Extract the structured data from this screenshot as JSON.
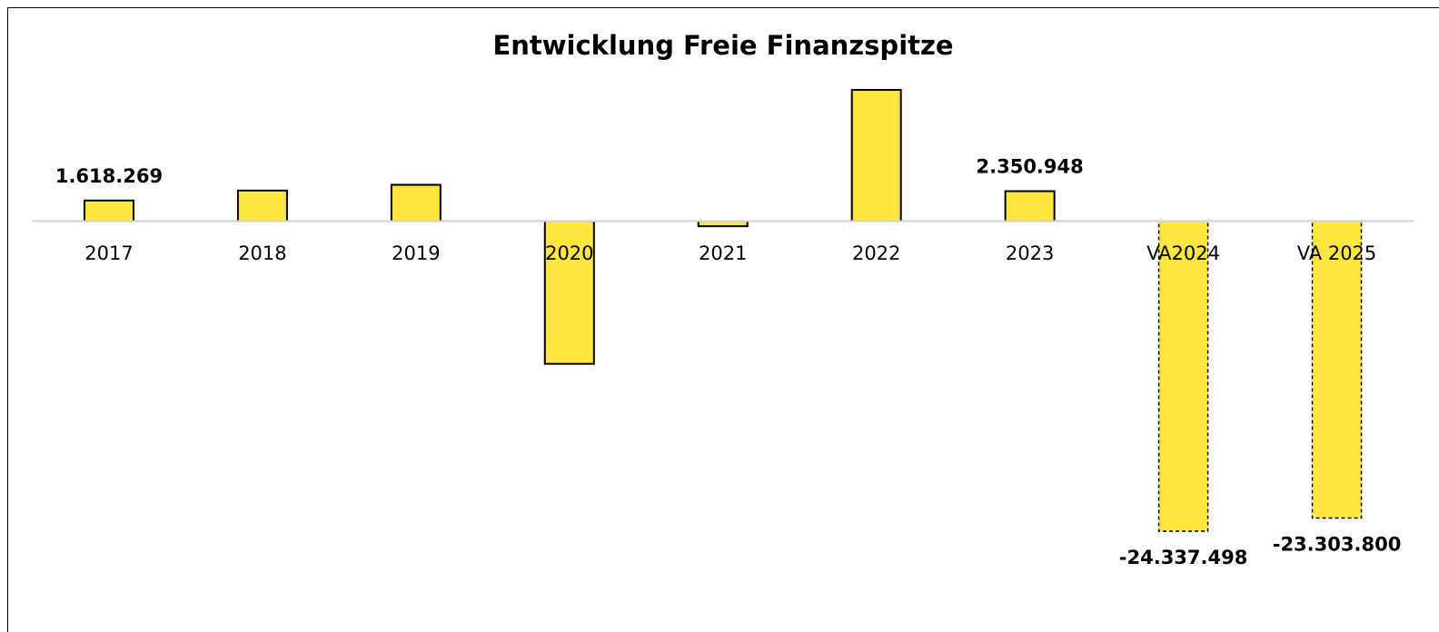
{
  "chart_data": {
    "type": "bar",
    "title": "Entwicklung Freie Finanzspitze",
    "categories": [
      "2017",
      "2018",
      "2019",
      "2020",
      "2021",
      "2022",
      "2023",
      "VA2024",
      "VA 2025"
    ],
    "values": [
      1618269,
      2400000,
      2850000,
      -11200000,
      -400000,
      10300000,
      2350948,
      -24337498,
      -23303800
    ],
    "value_labels": [
      "1.618.269",
      null,
      null,
      null,
      null,
      null,
      "2.350.948",
      "-24.337.498",
      "-23.303.800"
    ],
    "color": "#ffe641",
    "dashed": [
      false,
      false,
      false,
      false,
      false,
      false,
      false,
      true,
      true
    ]
  }
}
